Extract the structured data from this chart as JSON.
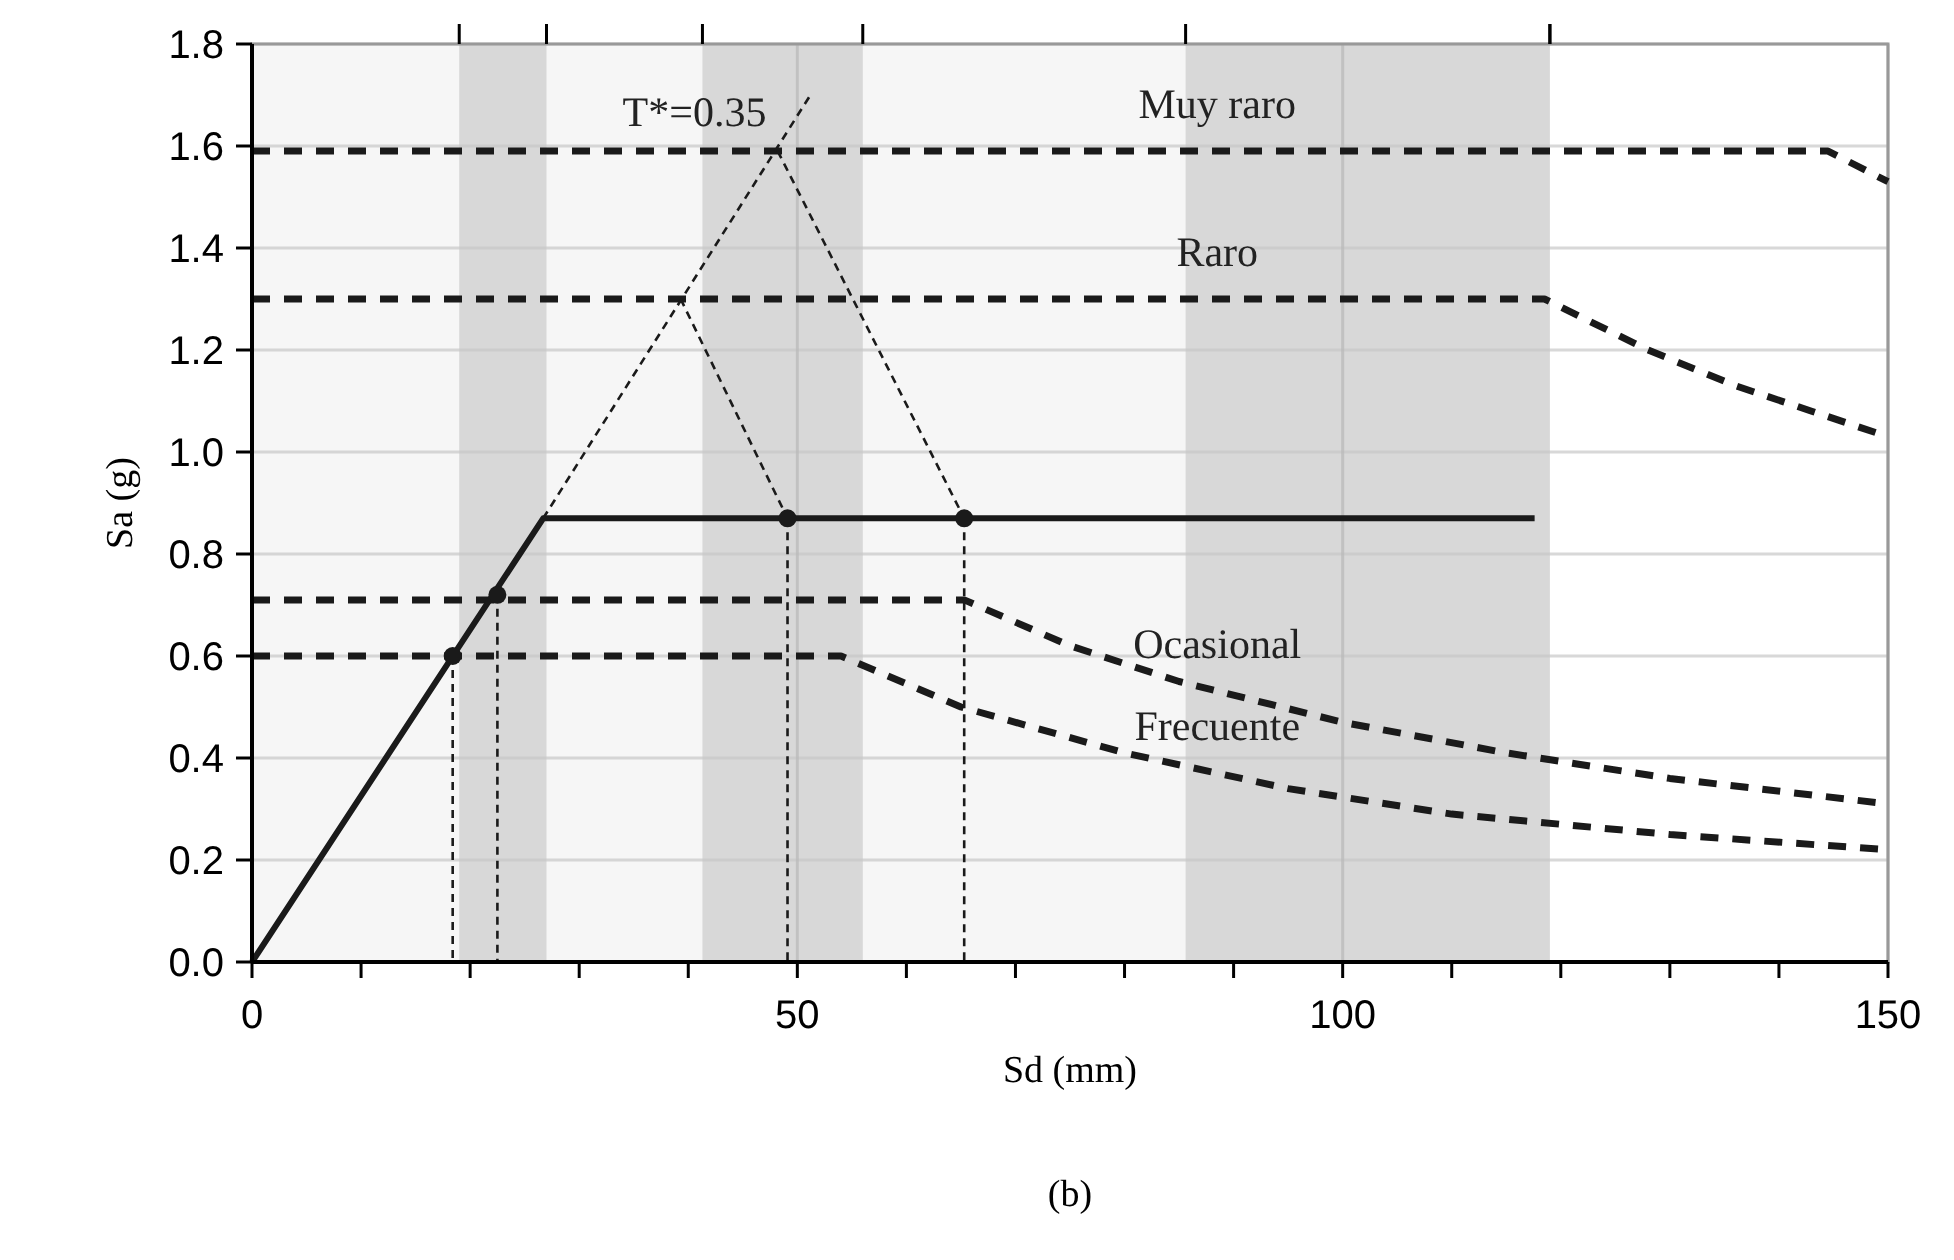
{
  "chart_data": {
    "type": "line",
    "xlabel": "Sd (mm)",
    "ylabel": "Sa (g)",
    "xlim": [
      0,
      150
    ],
    "ylim": [
      0,
      1.8
    ],
    "xticks": [
      0,
      {
        "value": 10,
        "label": null
      },
      {
        "value": 20,
        "label": null
      },
      {
        "value": 30,
        "label": null
      },
      {
        "value": 40,
        "label": null
      },
      50,
      {
        "value": 60,
        "label": null
      },
      {
        "value": 70,
        "label": null
      },
      {
        "value": 80,
        "label": null
      },
      {
        "value": 90,
        "label": null
      },
      100,
      {
        "value": 110,
        "label": null
      },
      {
        "value": 120,
        "label": null
      },
      {
        "value": 130,
        "label": null
      },
      {
        "value": 140,
        "label": null
      },
      150
    ],
    "yticks": [
      {
        "value": 0,
        "label": "0.0"
      },
      {
        "value": 0.2,
        "label": "0.2"
      },
      {
        "value": 0.4,
        "label": "0.4"
      },
      {
        "value": 0.6,
        "label": "0.6"
      },
      {
        "value": 0.8,
        "label": "0.8"
      },
      {
        "value": 1.0,
        "label": "1.0"
      },
      {
        "value": 1.2,
        "label": "1.2"
      },
      {
        "value": 1.4,
        "label": "1.4"
      },
      {
        "value": 1.6,
        "label": "1.6"
      },
      {
        "value": 1.8,
        "label": "1.8"
      }
    ],
    "grid": true,
    "bands": [
      {
        "axis": "x",
        "from": 0,
        "to": 119,
        "color": "#f6f6f6"
      },
      {
        "axis": "x",
        "from": 19,
        "to": 27,
        "color": "#d8d8d8"
      },
      {
        "axis": "x",
        "from": 41.3,
        "to": 56,
        "color": "#d8d8d8"
      },
      {
        "axis": "x",
        "from": 85.6,
        "to": 119,
        "color": "#d8d8d8"
      }
    ],
    "series": [
      {
        "name": "Muy raro",
        "color": "#1a1a1a",
        "line_style": "dashed",
        "x": [
          0,
          144.5,
          150
        ],
        "values": [
          1.59,
          1.59,
          1.53
        ]
      },
      {
        "name": "Raro",
        "color": "#1a1a1a",
        "line_style": "dashed",
        "x": [
          0,
          118.5,
          128,
          136,
          143,
          150
        ],
        "values": [
          1.3,
          1.3,
          1.2,
          1.13,
          1.08,
          1.03
        ]
      },
      {
        "name": "Ocasional",
        "color": "#1a1a1a",
        "line_style": "dashed",
        "x": [
          0,
          65.3,
          75,
          85,
          100,
          115,
          130,
          150
        ],
        "values": [
          0.71,
          0.71,
          0.62,
          0.55,
          0.47,
          0.41,
          0.36,
          0.31
        ]
      },
      {
        "name": "Frecuente",
        "color": "#1a1a1a",
        "line_style": "dashed",
        "x": [
          0,
          54,
          65,
          80,
          95,
          110,
          130,
          150
        ],
        "values": [
          0.6,
          0.6,
          0.5,
          0.41,
          0.34,
          0.29,
          0.25,
          0.22
        ]
      },
      {
        "color": "#1a1a1a",
        "line_style": "solid",
        "x": [
          0,
          26.7,
          117.6
        ],
        "values": [
          0,
          0.87,
          0.87
        ]
      },
      {
        "name": "T*=0.35",
        "color": "#1a1a1a",
        "line_style": "dotted",
        "x": [
          26.7,
          51.2
        ],
        "values": [
          0.87,
          1.7
        ]
      },
      {
        "color": "#1a1a1a",
        "line_style": "dotted",
        "x": [
          39.3,
          49.1
        ],
        "values": [
          1.3,
          0.87
        ]
      },
      {
        "color": "#1a1a1a",
        "line_style": "dotted",
        "x": [
          48.2,
          65.3
        ],
        "values": [
          1.59,
          0.87
        ]
      },
      {
        "color": "#1a1a1a",
        "line_style": "dotted",
        "x": [
          18.4,
          18.4
        ],
        "values": [
          0.6,
          0
        ]
      },
      {
        "color": "#1a1a1a",
        "line_style": "dotted",
        "x": [
          22.5,
          22.5
        ],
        "values": [
          0.72,
          0
        ]
      },
      {
        "color": "#1a1a1a",
        "line_style": "dotted",
        "x": [
          49.1,
          49.1
        ],
        "values": [
          0.87,
          0
        ]
      },
      {
        "color": "#1a1a1a",
        "line_style": "dotted",
        "x": [
          65.3,
          65.3
        ],
        "values": [
          0.87,
          0
        ]
      },
      {
        "type": "scatter",
        "color": "#1a1a1a",
        "marker": "circle",
        "x": [
          18.4,
          22.5,
          49.1,
          65.3
        ],
        "values": [
          0.6,
          0.72,
          0.87,
          0.87
        ]
      }
    ],
    "annotations": [
      "(b)"
    ]
  }
}
